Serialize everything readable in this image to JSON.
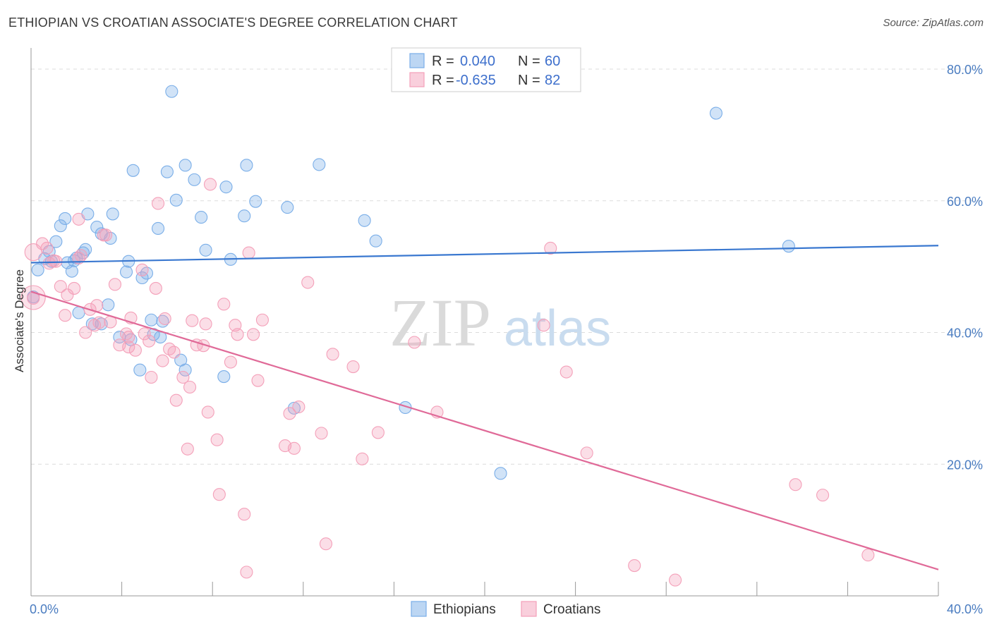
{
  "header": {
    "title": "ETHIOPIAN VS CROATIAN ASSOCIATE'S DEGREE CORRELATION CHART",
    "source": "Source: ZipAtlas.com"
  },
  "watermark": {
    "zip": "ZIP",
    "atlas": "atlas"
  },
  "chart_data": {
    "type": "scatter",
    "title": "ETHIOPIAN VS CROATIAN ASSOCIATE'S DEGREE CORRELATION CHART",
    "ylabel": "Associate's Degree",
    "xlabel": "",
    "xlim": [
      0,
      40
    ],
    "ylim": [
      0,
      82
    ],
    "x_tick_labels": [
      "0.0%",
      "40.0%"
    ],
    "y_ticks": [
      {
        "value": 20,
        "label": "20.0%"
      },
      {
        "value": 40,
        "label": "40.0%"
      },
      {
        "value": 60,
        "label": "60.0%"
      },
      {
        "value": 80,
        "label": "80.0%"
      }
    ],
    "grid": "horizontal dashed",
    "legend_position": "top-center",
    "stats_legend": [
      {
        "r_label": "R =",
        "r_value": "0.040",
        "n_label": "N =",
        "n_value": "60",
        "color": "#7aaee8"
      },
      {
        "r_label": "R =",
        "r_value": "-0.635",
        "n_label": "N =",
        "n_value": "82",
        "color": "#f4a0b9"
      }
    ],
    "series": [
      {
        "name": "Ethiopians",
        "color": "#7aaee8",
        "line_color": "#3a78d0",
        "trend": [
          [
            0,
            50.6
          ],
          [
            40,
            53.2
          ]
        ],
        "points": [
          [
            0.3,
            49.5
          ],
          [
            0.6,
            51.2
          ],
          [
            0.8,
            52.3
          ],
          [
            1.1,
            53.8
          ],
          [
            1.3,
            56.2
          ],
          [
            1.5,
            57.3
          ],
          [
            1.6,
            50.6
          ],
          [
            1.8,
            49.3
          ],
          [
            2.0,
            51.3
          ],
          [
            2.3,
            52.1
          ],
          [
            2.4,
            52.6
          ],
          [
            2.5,
            58.0
          ],
          [
            2.9,
            56.0
          ],
          [
            3.1,
            55.0
          ],
          [
            3.5,
            54.3
          ],
          [
            3.6,
            58.0
          ],
          [
            4.2,
            49.2
          ],
          [
            4.3,
            50.8
          ],
          [
            4.5,
            64.6
          ],
          [
            4.9,
            48.3
          ],
          [
            5.1,
            49.0
          ],
          [
            5.6,
            55.8
          ],
          [
            6.0,
            64.4
          ],
          [
            6.2,
            76.6
          ],
          [
            6.4,
            60.1
          ],
          [
            6.8,
            65.4
          ],
          [
            7.2,
            63.2
          ],
          [
            7.5,
            57.5
          ],
          [
            7.7,
            52.5
          ],
          [
            8.6,
            62.1
          ],
          [
            8.8,
            51.1
          ],
          [
            9.4,
            57.7
          ],
          [
            9.5,
            65.4
          ],
          [
            9.9,
            59.9
          ],
          [
            11.3,
            59.0
          ],
          [
            12.7,
            65.5
          ],
          [
            14.7,
            57.0
          ],
          [
            15.2,
            53.9
          ],
          [
            0.1,
            45.4
          ],
          [
            2.1,
            43.0
          ],
          [
            2.7,
            41.3
          ],
          [
            3.1,
            41.3
          ],
          [
            3.4,
            44.2
          ],
          [
            3.9,
            39.3
          ],
          [
            4.4,
            38.9
          ],
          [
            5.3,
            41.9
          ],
          [
            5.4,
            39.7
          ],
          [
            5.7,
            39.3
          ],
          [
            5.8,
            41.7
          ],
          [
            6.6,
            35.8
          ],
          [
            6.8,
            34.3
          ],
          [
            4.8,
            34.3
          ],
          [
            8.5,
            33.3
          ],
          [
            11.6,
            28.5
          ],
          [
            16.5,
            28.6
          ],
          [
            20.7,
            18.6
          ],
          [
            30.2,
            73.3
          ],
          [
            33.4,
            53.1
          ],
          [
            1.9,
            50.9
          ],
          [
            0.9,
            50.8
          ]
        ]
      },
      {
        "name": "Croatians",
        "color": "#f4a0b9",
        "line_color": "#e06a98",
        "trend": [
          [
            0,
            46.2
          ],
          [
            40,
            4.0
          ]
        ],
        "points": [
          [
            0.1,
            45.2
          ],
          [
            0.5,
            53.5
          ],
          [
            0.7,
            52.8
          ],
          [
            0.8,
            50.5
          ],
          [
            1.0,
            50.9
          ],
          [
            1.3,
            47.0
          ],
          [
            1.5,
            42.6
          ],
          [
            1.6,
            45.7
          ],
          [
            1.9,
            46.7
          ],
          [
            2.1,
            51.3
          ],
          [
            2.1,
            57.2
          ],
          [
            2.4,
            40.0
          ],
          [
            2.6,
            43.5
          ],
          [
            2.8,
            41.1
          ],
          [
            2.9,
            44.1
          ],
          [
            3.0,
            41.5
          ],
          [
            3.3,
            54.8
          ],
          [
            3.5,
            41.6
          ],
          [
            3.7,
            47.3
          ],
          [
            3.9,
            38.1
          ],
          [
            4.2,
            39.8
          ],
          [
            4.3,
            37.8
          ],
          [
            4.4,
            42.2
          ],
          [
            4.6,
            37.3
          ],
          [
            4.9,
            49.5
          ],
          [
            5.0,
            39.8
          ],
          [
            5.2,
            38.7
          ],
          [
            5.3,
            33.2
          ],
          [
            5.5,
            46.7
          ],
          [
            5.6,
            59.6
          ],
          [
            5.8,
            35.7
          ],
          [
            5.9,
            42.1
          ],
          [
            6.1,
            37.5
          ],
          [
            6.3,
            37.0
          ],
          [
            6.4,
            29.7
          ],
          [
            6.7,
            33.2
          ],
          [
            6.9,
            22.3
          ],
          [
            7.0,
            31.7
          ],
          [
            7.1,
            41.8
          ],
          [
            7.3,
            38.1
          ],
          [
            7.6,
            38.0
          ],
          [
            7.7,
            41.3
          ],
          [
            7.8,
            27.9
          ],
          [
            7.9,
            62.5
          ],
          [
            8.2,
            23.7
          ],
          [
            8.3,
            15.4
          ],
          [
            8.5,
            44.3
          ],
          [
            8.8,
            35.5
          ],
          [
            9.0,
            41.1
          ],
          [
            9.1,
            39.7
          ],
          [
            9.4,
            12.4
          ],
          [
            9.5,
            3.6
          ],
          [
            9.6,
            52.1
          ],
          [
            9.8,
            39.7
          ],
          [
            10.0,
            32.7
          ],
          [
            10.2,
            41.9
          ],
          [
            11.2,
            22.8
          ],
          [
            11.4,
            27.7
          ],
          [
            11.6,
            22.4
          ],
          [
            11.8,
            28.7
          ],
          [
            12.2,
            47.6
          ],
          [
            12.8,
            24.7
          ],
          [
            13.0,
            7.9
          ],
          [
            13.3,
            36.7
          ],
          [
            14.2,
            34.8
          ],
          [
            14.6,
            20.8
          ],
          [
            15.3,
            24.8
          ],
          [
            16.9,
            38.5
          ],
          [
            17.9,
            27.9
          ],
          [
            22.6,
            41.1
          ],
          [
            22.9,
            52.8
          ],
          [
            23.6,
            34.0
          ],
          [
            24.5,
            21.7
          ],
          [
            26.6,
            4.6
          ],
          [
            28.4,
            2.4
          ],
          [
            33.7,
            16.9
          ],
          [
            34.9,
            15.3
          ],
          [
            36.9,
            6.2
          ],
          [
            3.2,
            54.8
          ],
          [
            1.1,
            50.8
          ],
          [
            2.2,
            51.7
          ],
          [
            4.3,
            39.3
          ]
        ]
      }
    ]
  },
  "bottom_legend": [
    {
      "label": "Ethiopians",
      "color": "#7aaee8"
    },
    {
      "label": "Croatians",
      "color": "#f4a0b9"
    }
  ]
}
